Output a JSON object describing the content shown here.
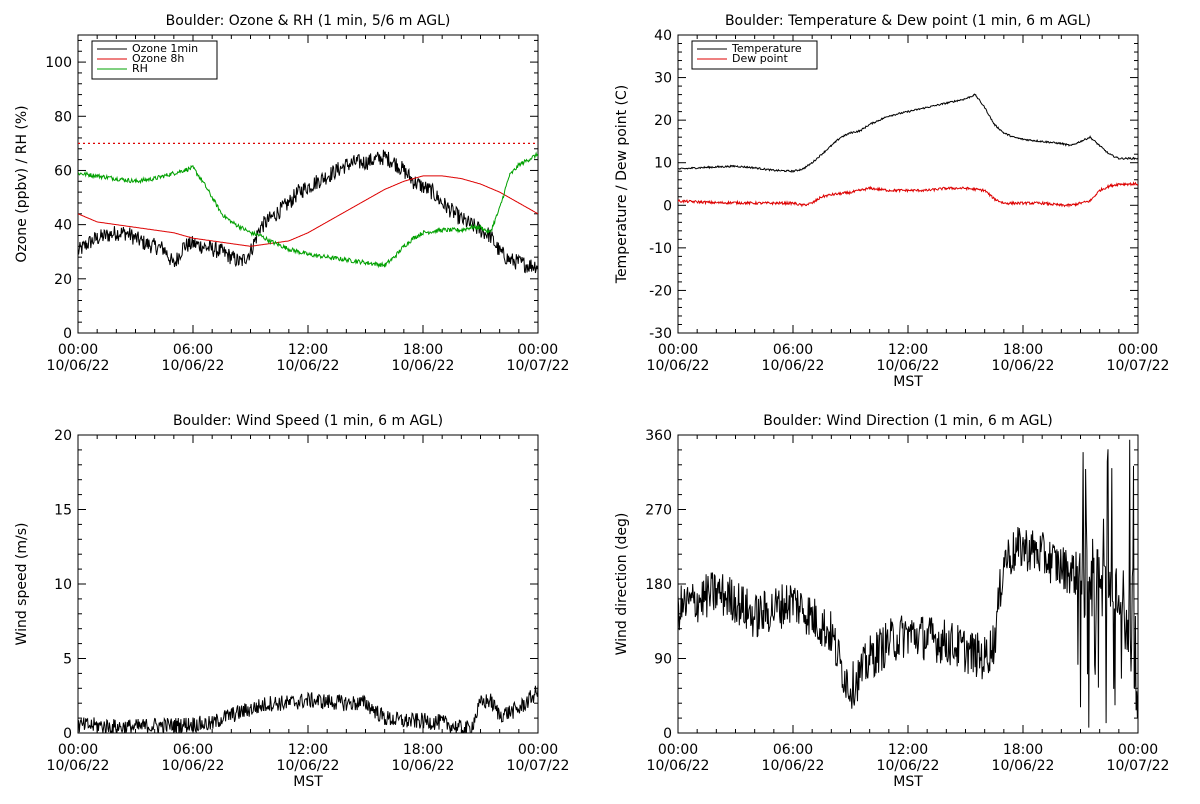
{
  "x_tick_labels": [
    {
      "time": "00:00",
      "date": "10/06/22"
    },
    {
      "time": "06:00",
      "date": "10/06/22"
    },
    {
      "time": "12:00",
      "date": "10/06/22"
    },
    {
      "time": "18:00",
      "date": "10/06/22"
    },
    {
      "time": "00:00",
      "date": "10/07/22"
    }
  ],
  "colors": {
    "black": "#000000",
    "red": "#dd0000",
    "green": "#00a000"
  },
  "chart_data": [
    {
      "id": "ozone_rh",
      "type": "line",
      "title": "Boulder: Ozone & RH (1 min, 5/6 m AGL)",
      "xlabel": "",
      "ylabel": "Ozone (ppbv) / RH (%)",
      "xlim": [
        0,
        24
      ],
      "ylim": [
        0,
        110
      ],
      "yticks": [
        0,
        20,
        40,
        60,
        80,
        100
      ],
      "legend": "top-left",
      "reference_line": {
        "y": 70,
        "color": "#dd0000",
        "style": "dotted"
      },
      "series": [
        {
          "name": "Ozone 1min",
          "color": "#000000",
          "x": [
            0,
            0.5,
            1,
            1.5,
            2,
            2.5,
            3,
            3.5,
            4,
            4.5,
            5,
            5.5,
            6,
            6.5,
            7,
            7.5,
            8,
            8.5,
            9,
            9.5,
            10,
            10.5,
            11,
            11.5,
            12,
            12.5,
            13,
            13.5,
            14,
            14.5,
            15,
            15.5,
            16,
            16.5,
            17,
            17.5,
            18,
            18.5,
            19,
            19.5,
            20,
            20.5,
            21,
            21.5,
            22,
            22.5,
            23,
            23.5,
            24
          ],
          "y": [
            30,
            33,
            35,
            36,
            37,
            37,
            35,
            33,
            32,
            31,
            25,
            32,
            33,
            32,
            31,
            30,
            28,
            26,
            30,
            39,
            42,
            45,
            48,
            52,
            54,
            56,
            58,
            60,
            62,
            63,
            63,
            64,
            65,
            63,
            60,
            56,
            54,
            52,
            48,
            45,
            42,
            40,
            38,
            36,
            30,
            27,
            26,
            25,
            25
          ],
          "noise": 3
        },
        {
          "name": "Ozone 8h",
          "color": "#dd0000",
          "x": [
            0,
            1,
            2,
            3,
            4,
            5,
            6,
            7,
            8,
            9,
            10,
            11,
            12,
            13,
            14,
            15,
            16,
            17,
            18,
            19,
            20,
            21,
            22,
            23,
            24
          ],
          "y": [
            44,
            41,
            40,
            39,
            38,
            37,
            35,
            34,
            33,
            32,
            33,
            34,
            37,
            41,
            45,
            49,
            53,
            56,
            58,
            58,
            57,
            55,
            52,
            48,
            44
          ],
          "noise": 0
        },
        {
          "name": "RH",
          "color": "#00a000",
          "x": [
            0,
            1,
            2,
            3,
            4,
            5,
            6,
            6.5,
            7,
            7.5,
            8,
            8.5,
            9,
            9.5,
            10,
            11,
            12,
            13,
            14,
            15,
            16,
            16.5,
            17,
            17.5,
            18,
            19,
            20,
            20.5,
            21,
            21.5,
            22,
            22.5,
            23,
            23.5,
            24
          ],
          "y": [
            59,
            58,
            57,
            56,
            57,
            59,
            61,
            56,
            50,
            44,
            41,
            39,
            37,
            36,
            34,
            31,
            29,
            28,
            27,
            26,
            25,
            28,
            32,
            35,
            37,
            38,
            38,
            39,
            39,
            37,
            46,
            58,
            62,
            64,
            66
          ],
          "noise": 0.8
        }
      ]
    },
    {
      "id": "temp_dew",
      "type": "line",
      "title": "Boulder: Temperature & Dew point (1 min, 6 m AGL)",
      "xlabel": "MST",
      "ylabel": "Temperature / Dew point (C)",
      "xlim": [
        0,
        24
      ],
      "ylim": [
        -30,
        40
      ],
      "yticks": [
        -30,
        -20,
        -10,
        0,
        10,
        20,
        30,
        40
      ],
      "legend": "top-left",
      "series": [
        {
          "name": "Temperature",
          "color": "#000000",
          "x": [
            0,
            1,
            2,
            3,
            4,
            5,
            6,
            6.5,
            7,
            7.5,
            8,
            8.5,
            9,
            9.5,
            10,
            11,
            12,
            13,
            14,
            15,
            15.5,
            16,
            16.5,
            17,
            17.5,
            18,
            19,
            20,
            20.5,
            21,
            21.5,
            22,
            22.5,
            23,
            23.5,
            24
          ],
          "y": [
            8.5,
            8.8,
            9,
            9.2,
            8.8,
            8.2,
            8,
            8.5,
            10,
            12,
            14,
            16,
            17,
            17.5,
            19,
            21,
            22,
            23,
            24,
            25,
            26,
            23,
            19,
            17,
            16,
            15.5,
            15,
            14.5,
            14,
            15,
            16,
            14,
            12,
            11,
            11,
            11
          ],
          "noise": 0.2
        },
        {
          "name": "Dew point",
          "color": "#dd0000",
          "x": [
            0,
            1,
            2,
            3,
            4,
            5,
            6,
            6.5,
            7,
            7.5,
            8,
            9,
            10,
            11,
            12,
            13,
            14,
            15,
            16,
            16.5,
            17,
            18,
            19,
            20,
            20.5,
            21,
            21.5,
            22,
            22.5,
            23,
            24
          ],
          "y": [
            1,
            0.8,
            0.6,
            0.6,
            0.5,
            0.5,
            0.5,
            0,
            0.5,
            2,
            2.5,
            3,
            4,
            3.5,
            3.5,
            3.5,
            4,
            4,
            3.5,
            1.5,
            0.5,
            0.5,
            0.5,
            0,
            0,
            0.5,
            1,
            3.5,
            4.5,
            5,
            5
          ],
          "noise": 0.3
        }
      ]
    },
    {
      "id": "wind_speed",
      "type": "line",
      "title": "Boulder: Wind Speed (1 min, 6 m AGL)",
      "xlabel": "MST",
      "ylabel": "Wind speed (m/s)",
      "xlim": [
        0,
        24
      ],
      "ylim": [
        0,
        20
      ],
      "yticks": [
        0,
        5,
        10,
        15,
        20
      ],
      "series": [
        {
          "name": "",
          "color": "#000000",
          "x": [
            0,
            1,
            2,
            3,
            4,
            5,
            6,
            7,
            7.5,
            8,
            8.5,
            9,
            10,
            11,
            12,
            13,
            14,
            15,
            15.5,
            16,
            17,
            18,
            19,
            20,
            20.5,
            21,
            21.5,
            22,
            22.5,
            23,
            23.5,
            24
          ],
          "y": [
            0.5,
            0.5,
            0.4,
            0.4,
            0.5,
            0.5,
            0.6,
            0.6,
            1,
            1.2,
            1.4,
            1.6,
            2,
            2,
            2.2,
            2.1,
            2,
            2,
            1.5,
            1,
            0.8,
            0.8,
            0.7,
            0.3,
            0.3,
            2,
            2.2,
            1.2,
            1.4,
            1.6,
            2.2,
            2.8
          ],
          "noise": 0.55
        }
      ]
    },
    {
      "id": "wind_direction",
      "type": "line",
      "title": "Boulder: Wind Direction (1 min, 6 m AGL)",
      "xlabel": "MST",
      "ylabel": "Wind direction (deg)",
      "xlim": [
        0,
        24
      ],
      "ylim": [
        0,
        360
      ],
      "yticks": [
        0,
        90,
        180,
        270,
        360
      ],
      "series": [
        {
          "name": "",
          "color": "#000000",
          "x": [
            0,
            1,
            2,
            3,
            4,
            5,
            6,
            7,
            8,
            8.5,
            9,
            9.5,
            10,
            11,
            12,
            13,
            14,
            15,
            16,
            16.5,
            17,
            18,
            19,
            20,
            21,
            21.5,
            22,
            22.5,
            23,
            23.5,
            24
          ],
          "y": [
            150,
            160,
            170,
            160,
            140,
            150,
            160,
            140,
            120,
            80,
            55,
            70,
            90,
            110,
            120,
            115,
            110,
            100,
            90,
            110,
            210,
            225,
            215,
            200,
            190,
            210,
            200,
            180,
            170,
            120,
            30
          ],
          "noise": 28
        }
      ]
    }
  ]
}
